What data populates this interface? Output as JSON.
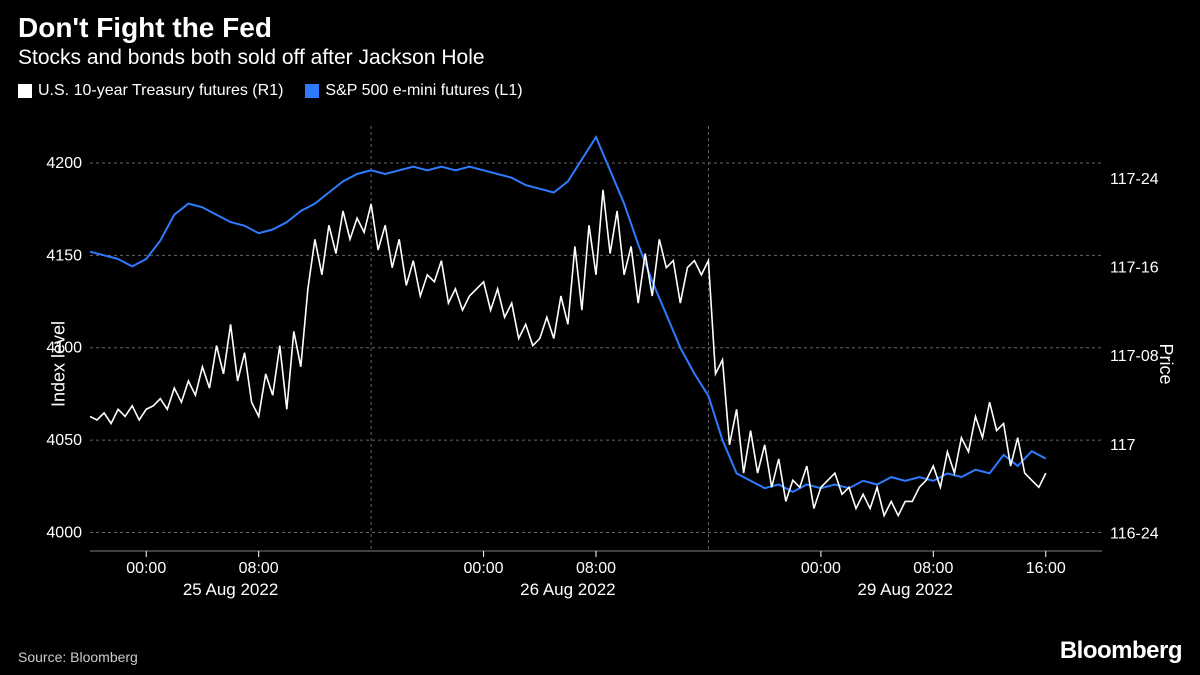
{
  "title": "Don't Fight the Fed",
  "subtitle": "Stocks and bonds both sold off after Jackson Hole",
  "source": "Source: Bloomberg",
  "brand": "Bloomberg",
  "legend": {
    "series1": {
      "label": "U.S. 10-year Treasury futures (R1)",
      "color": "#ffffff"
    },
    "series2": {
      "label": "S&P 500 e-mini futures (L1)",
      "color": "#2e7bff"
    }
  },
  "chart": {
    "type": "line",
    "background_color": "#000000",
    "grid_color": "#666666",
    "grid_dash": "3,3",
    "left_axis": {
      "label": "Index level",
      "min": 3990,
      "max": 4220,
      "ticks": [
        4000,
        4050,
        4100,
        4150,
        4200
      ],
      "tick_labels": [
        "4000",
        "4050",
        "4100",
        "4150",
        "4200"
      ]
    },
    "right_axis": {
      "label": "Price",
      "min": 116.7,
      "max": 117.9,
      "ticks": [
        116.75,
        117.0,
        117.25,
        117.5,
        117.75
      ],
      "tick_labels": [
        "116-24",
        "117",
        "117-08",
        "117-16",
        "117-24"
      ]
    },
    "x_axis": {
      "min": 0,
      "max": 72,
      "time_ticks": [
        4,
        12,
        28,
        36,
        52,
        60,
        68
      ],
      "time_labels": [
        "00:00",
        "08:00",
        "00:00",
        "08:00",
        "00:00",
        "08:00",
        "16:00"
      ],
      "date_positions": [
        10,
        34,
        58
      ],
      "date_labels": [
        "25 Aug 2022",
        "26 Aug 2022",
        "29 Aug 2022"
      ],
      "day_separators": [
        20,
        44
      ]
    },
    "series_treasury": {
      "color": "#ffffff",
      "width": 1.6,
      "data": [
        [
          0,
          117.08
        ],
        [
          0.5,
          117.07
        ],
        [
          1,
          117.09
        ],
        [
          1.5,
          117.06
        ],
        [
          2,
          117.1
        ],
        [
          2.5,
          117.08
        ],
        [
          3,
          117.11
        ],
        [
          3.5,
          117.07
        ],
        [
          4,
          117.1
        ],
        [
          4.5,
          117.11
        ],
        [
          5,
          117.13
        ],
        [
          5.5,
          117.1
        ],
        [
          6,
          117.16
        ],
        [
          6.5,
          117.12
        ],
        [
          7,
          117.18
        ],
        [
          7.5,
          117.14
        ],
        [
          8,
          117.22
        ],
        [
          8.5,
          117.16
        ],
        [
          9,
          117.28
        ],
        [
          9.5,
          117.2
        ],
        [
          10,
          117.34
        ],
        [
          10.5,
          117.18
        ],
        [
          11,
          117.26
        ],
        [
          11.5,
          117.12
        ],
        [
          12,
          117.08
        ],
        [
          12.5,
          117.2
        ],
        [
          13,
          117.14
        ],
        [
          13.5,
          117.28
        ],
        [
          14,
          117.1
        ],
        [
          14.5,
          117.32
        ],
        [
          15,
          117.22
        ],
        [
          15.5,
          117.44
        ],
        [
          16,
          117.58
        ],
        [
          16.5,
          117.48
        ],
        [
          17,
          117.62
        ],
        [
          17.5,
          117.54
        ],
        [
          18,
          117.66
        ],
        [
          18.5,
          117.58
        ],
        [
          19,
          117.64
        ],
        [
          19.5,
          117.6
        ],
        [
          20,
          117.68
        ],
        [
          20.5,
          117.55
        ],
        [
          21,
          117.62
        ],
        [
          21.5,
          117.5
        ],
        [
          22,
          117.58
        ],
        [
          22.5,
          117.45
        ],
        [
          23,
          117.52
        ],
        [
          23.5,
          117.42
        ],
        [
          24,
          117.48
        ],
        [
          24.5,
          117.46
        ],
        [
          25,
          117.52
        ],
        [
          25.5,
          117.4
        ],
        [
          26,
          117.44
        ],
        [
          26.5,
          117.38
        ],
        [
          27,
          117.42
        ],
        [
          27.5,
          117.44
        ],
        [
          28,
          117.46
        ],
        [
          28.5,
          117.38
        ],
        [
          29,
          117.44
        ],
        [
          29.5,
          117.36
        ],
        [
          30,
          117.4
        ],
        [
          30.5,
          117.3
        ],
        [
          31,
          117.34
        ],
        [
          31.5,
          117.28
        ],
        [
          32,
          117.3
        ],
        [
          32.5,
          117.36
        ],
        [
          33,
          117.3
        ],
        [
          33.5,
          117.42
        ],
        [
          34,
          117.34
        ],
        [
          34.5,
          117.56
        ],
        [
          35,
          117.38
        ],
        [
          35.5,
          117.62
        ],
        [
          36,
          117.48
        ],
        [
          36.5,
          117.72
        ],
        [
          37,
          117.54
        ],
        [
          37.5,
          117.66
        ],
        [
          38,
          117.48
        ],
        [
          38.5,
          117.56
        ],
        [
          39,
          117.4
        ],
        [
          39.5,
          117.54
        ],
        [
          40,
          117.42
        ],
        [
          40.5,
          117.58
        ],
        [
          41,
          117.5
        ],
        [
          41.5,
          117.52
        ],
        [
          42,
          117.4
        ],
        [
          42.5,
          117.5
        ],
        [
          43,
          117.52
        ],
        [
          43.5,
          117.48
        ],
        [
          44,
          117.52
        ],
        [
          44.5,
          117.2
        ],
        [
          45,
          117.24
        ],
        [
          45.5,
          117.0
        ],
        [
          46,
          117.1
        ],
        [
          46.5,
          116.92
        ],
        [
          47,
          117.04
        ],
        [
          47.5,
          116.92
        ],
        [
          48,
          117.0
        ],
        [
          48.5,
          116.88
        ],
        [
          49,
          116.96
        ],
        [
          49.5,
          116.84
        ],
        [
          50,
          116.9
        ],
        [
          50.5,
          116.88
        ],
        [
          51,
          116.94
        ],
        [
          51.5,
          116.82
        ],
        [
          52,
          116.88
        ],
        [
          52.5,
          116.9
        ],
        [
          53,
          116.92
        ],
        [
          53.5,
          116.86
        ],
        [
          54,
          116.88
        ],
        [
          54.5,
          116.82
        ],
        [
          55,
          116.86
        ],
        [
          55.5,
          116.82
        ],
        [
          56,
          116.88
        ],
        [
          56.5,
          116.8
        ],
        [
          57,
          116.84
        ],
        [
          57.5,
          116.8
        ],
        [
          58,
          116.84
        ],
        [
          58.5,
          116.84
        ],
        [
          59,
          116.88
        ],
        [
          59.5,
          116.9
        ],
        [
          60,
          116.94
        ],
        [
          60.5,
          116.88
        ],
        [
          61,
          116.98
        ],
        [
          61.5,
          116.92
        ],
        [
          62,
          117.02
        ],
        [
          62.5,
          116.98
        ],
        [
          63,
          117.08
        ],
        [
          63.5,
          117.02
        ],
        [
          64,
          117.12
        ],
        [
          64.5,
          117.04
        ],
        [
          65,
          117.06
        ],
        [
          65.5,
          116.94
        ],
        [
          66,
          117.02
        ],
        [
          66.5,
          116.92
        ],
        [
          67,
          116.9
        ],
        [
          67.5,
          116.88
        ],
        [
          68,
          116.92
        ]
      ]
    },
    "series_sp500": {
      "color": "#2e7bff",
      "width": 2.0,
      "data": [
        [
          0,
          4152
        ],
        [
          1,
          4150
        ],
        [
          2,
          4148
        ],
        [
          3,
          4144
        ],
        [
          4,
          4148
        ],
        [
          5,
          4158
        ],
        [
          6,
          4172
        ],
        [
          7,
          4178
        ],
        [
          8,
          4176
        ],
        [
          9,
          4172
        ],
        [
          10,
          4168
        ],
        [
          11,
          4166
        ],
        [
          12,
          4162
        ],
        [
          13,
          4164
        ],
        [
          14,
          4168
        ],
        [
          15,
          4174
        ],
        [
          16,
          4178
        ],
        [
          17,
          4184
        ],
        [
          18,
          4190
        ],
        [
          19,
          4194
        ],
        [
          20,
          4196
        ],
        [
          21,
          4194
        ],
        [
          22,
          4196
        ],
        [
          23,
          4198
        ],
        [
          24,
          4196
        ],
        [
          25,
          4198
        ],
        [
          26,
          4196
        ],
        [
          27,
          4198
        ],
        [
          28,
          4196
        ],
        [
          29,
          4194
        ],
        [
          30,
          4192
        ],
        [
          31,
          4188
        ],
        [
          32,
          4186
        ],
        [
          33,
          4184
        ],
        [
          34,
          4190
        ],
        [
          35,
          4202
        ],
        [
          36,
          4214
        ],
        [
          37,
          4196
        ],
        [
          38,
          4178
        ],
        [
          39,
          4156
        ],
        [
          40,
          4136
        ],
        [
          41,
          4118
        ],
        [
          42,
          4100
        ],
        [
          43,
          4086
        ],
        [
          44,
          4074
        ],
        [
          45,
          4050
        ],
        [
          46,
          4032
        ],
        [
          47,
          4028
        ],
        [
          48,
          4024
        ],
        [
          49,
          4026
        ],
        [
          50,
          4022
        ],
        [
          51,
          4026
        ],
        [
          52,
          4024
        ],
        [
          53,
          4026
        ],
        [
          54,
          4024
        ],
        [
          55,
          4028
        ],
        [
          56,
          4026
        ],
        [
          57,
          4030
        ],
        [
          58,
          4028
        ],
        [
          59,
          4030
        ],
        [
          60,
          4028
        ],
        [
          61,
          4032
        ],
        [
          62,
          4030
        ],
        [
          63,
          4034
        ],
        [
          64,
          4032
        ],
        [
          65,
          4042
        ],
        [
          66,
          4036
        ],
        [
          67,
          4044
        ],
        [
          68,
          4040
        ]
      ]
    }
  }
}
